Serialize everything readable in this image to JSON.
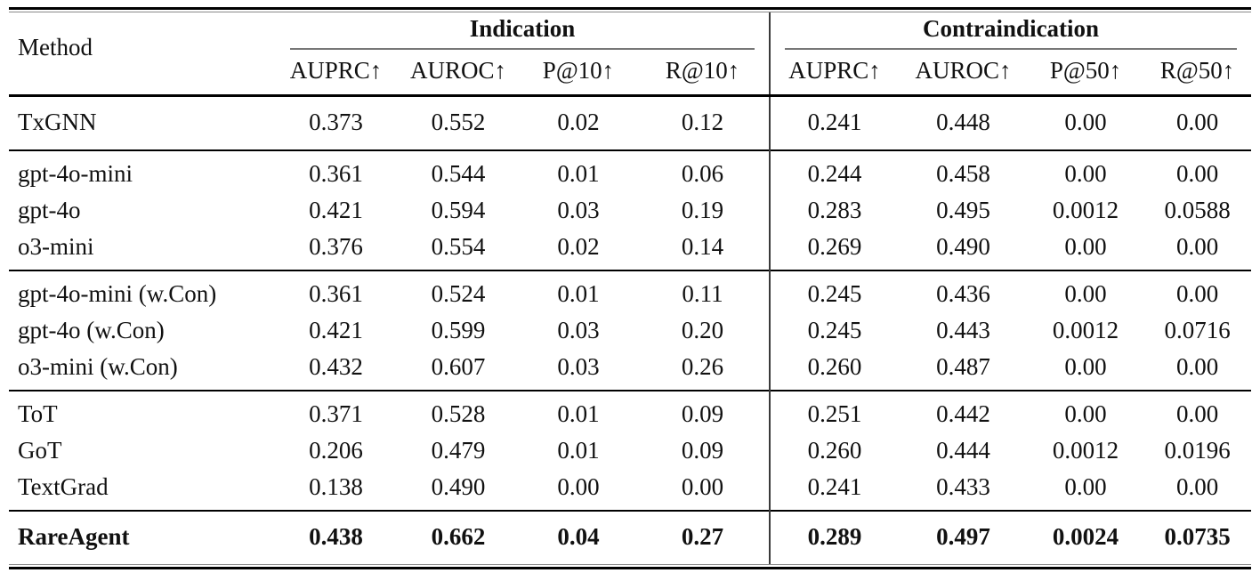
{
  "table": {
    "method_label": "Method",
    "groups": [
      {
        "label": "Indication",
        "columns": [
          "AUPRC↑",
          "AUROC↑",
          "P@10↑",
          "R@10↑"
        ]
      },
      {
        "label": "Contraindication",
        "columns": [
          "AUPRC↑",
          "AUROC↑",
          "P@50↑",
          "R@50↑"
        ]
      }
    ],
    "row_groups": [
      {
        "bold": false,
        "rows": [
          {
            "method": "TxGNN",
            "values": [
              "0.373",
              "0.552",
              "0.02",
              "0.12",
              "0.241",
              "0.448",
              "0.00",
              "0.00"
            ]
          }
        ]
      },
      {
        "bold": false,
        "rows": [
          {
            "method": "gpt-4o-mini",
            "values": [
              "0.361",
              "0.544",
              "0.01",
              "0.06",
              "0.244",
              "0.458",
              "0.00",
              "0.00"
            ]
          },
          {
            "method": "gpt-4o",
            "values": [
              "0.421",
              "0.594",
              "0.03",
              "0.19",
              "0.283",
              "0.495",
              "0.0012",
              "0.0588"
            ]
          },
          {
            "method": "o3-mini",
            "values": [
              "0.376",
              "0.554",
              "0.02",
              "0.14",
              "0.269",
              "0.490",
              "0.00",
              "0.00"
            ]
          }
        ]
      },
      {
        "bold": false,
        "rows": [
          {
            "method": "gpt-4o-mini (w.Con)",
            "values": [
              "0.361",
              "0.524",
              "0.01",
              "0.11",
              "0.245",
              "0.436",
              "0.00",
              "0.00"
            ]
          },
          {
            "method": "gpt-4o (w.Con)",
            "values": [
              "0.421",
              "0.599",
              "0.03",
              "0.20",
              "0.245",
              "0.443",
              "0.0012",
              "0.0716"
            ]
          },
          {
            "method": "o3-mini (w.Con)",
            "values": [
              "0.432",
              "0.607",
              "0.03",
              "0.26",
              "0.260",
              "0.487",
              "0.00",
              "0.00"
            ]
          }
        ]
      },
      {
        "bold": false,
        "rows": [
          {
            "method": "ToT",
            "values": [
              "0.371",
              "0.528",
              "0.01",
              "0.09",
              "0.251",
              "0.442",
              "0.00",
              "0.00"
            ]
          },
          {
            "method": "GoT",
            "values": [
              "0.206",
              "0.479",
              "0.01",
              "0.09",
              "0.260",
              "0.444",
              "0.0012",
              "0.0196"
            ]
          },
          {
            "method": "TextGrad",
            "values": [
              "0.138",
              "0.490",
              "0.00",
              "0.00",
              "0.241",
              "0.433",
              "0.00",
              "0.00"
            ]
          }
        ]
      },
      {
        "bold": true,
        "rows": [
          {
            "method": "RareAgent",
            "values": [
              "0.438",
              "0.662",
              "0.04",
              "0.27",
              "0.289",
              "0.497",
              "0.0024",
              "0.0735"
            ]
          }
        ]
      }
    ],
    "colors": {
      "text": "#111111",
      "rule_black": "#000000",
      "rule_gray": "#8a8a8a",
      "cmidrule_gray": "#777777",
      "divider": "#3a3a3a",
      "background": "#ffffff"
    }
  }
}
